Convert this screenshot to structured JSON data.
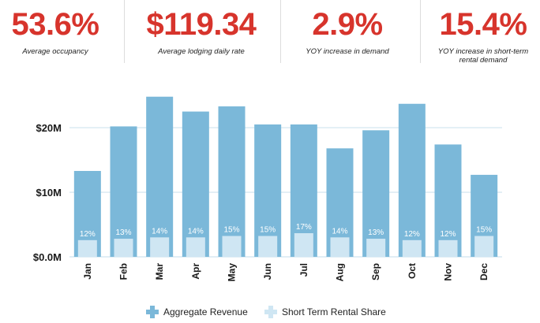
{
  "stats": [
    {
      "value": "53.6%",
      "label": "Average occupancy"
    },
    {
      "value": "$119.34",
      "label": "Average lodging daily rate"
    },
    {
      "value": "2.9%",
      "label": "YOY increase in demand"
    },
    {
      "value": "15.4%",
      "label": "YOY increase in short-term rental demand"
    }
  ],
  "colors": {
    "accent": "#d7342c",
    "revenue": "#7bb8d9",
    "share": "#cfe6f3",
    "grid": "#cfe3ef"
  },
  "legend": {
    "revenue_label": "Aggregate Revenue",
    "share_label": "Short Term Rental Share"
  },
  "chart_data": {
    "type": "bar",
    "categories": [
      "Jan",
      "Feb",
      "Mar",
      "Apr",
      "May",
      "Jun",
      "Jul",
      "Aug",
      "Sep",
      "Oct",
      "Nov",
      "Dec"
    ],
    "series": [
      {
        "name": "Aggregate Revenue",
        "values": [
          13.3,
          20.2,
          24.8,
          22.5,
          23.3,
          20.5,
          20.5,
          16.8,
          19.6,
          23.7,
          17.4,
          12.7
        ]
      },
      {
        "name": "Short Term Rental Share",
        "values": [
          12,
          13,
          14,
          14,
          15,
          15,
          17,
          14,
          13,
          12,
          12,
          15
        ],
        "labels": [
          "12%",
          "13%",
          "14%",
          "14%",
          "15%",
          "15%",
          "17%",
          "14%",
          "13%",
          "12%",
          "12%",
          "15%"
        ]
      }
    ],
    "yticks": [
      0,
      10,
      20
    ],
    "ytick_labels": [
      "$0.0M",
      "$10M",
      "$20M"
    ],
    "ylim": [
      0,
      25.5
    ],
    "grid": true,
    "legend_position": "bottom"
  }
}
